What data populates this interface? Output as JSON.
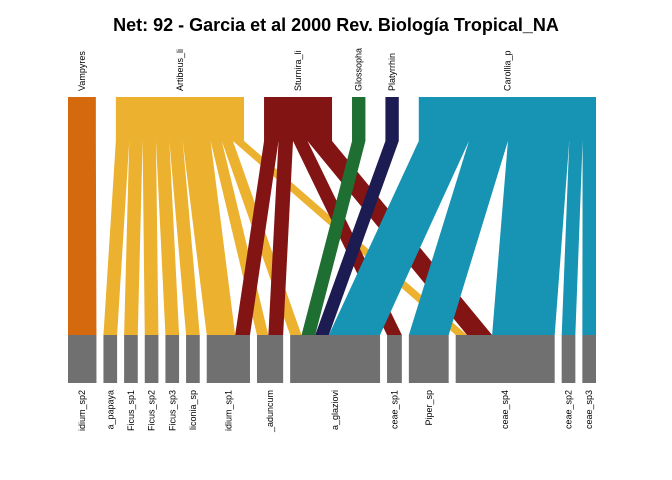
{
  "chart_data": {
    "type": "bipartite",
    "title": "Net: 92 - Garcia et al 2000 Rev. Biología Tropical_NA",
    "higher_level": [
      {
        "label": "Vampyres",
        "color": "#d4690e"
      },
      {
        "label": "Artibeus_li",
        "color": "#ebb12f"
      },
      {
        "label": "Sturnira_li",
        "color": "#821414"
      },
      {
        "label": "Glossopha",
        "color": "#1f6e32"
      },
      {
        "label": "Platyrrhin",
        "color": "#1c1c52"
      },
      {
        "label": "Carollia_p",
        "color": "#1794b3"
      }
    ],
    "lower_level": [
      {
        "label": "idium_sp2",
        "color": "#707070"
      },
      {
        "label": "a_papaya",
        "color": "#707070"
      },
      {
        "label": "Ficus_sp1",
        "color": "#707070"
      },
      {
        "label": "Ficus_sp2",
        "color": "#707070"
      },
      {
        "label": "Ficus_sp3",
        "color": "#707070"
      },
      {
        "label": "liconia_sp",
        "color": "#707070"
      },
      {
        "label": "idium_sp1",
        "color": "#707070"
      },
      {
        "label": "_aduncum",
        "color": "#707070"
      },
      {
        "label": "a_glaziovi",
        "color": "#707070"
      },
      {
        "label": "ceae_sp1",
        "color": "#707070"
      },
      {
        "label": "Piper_sp",
        "color": "#707070"
      },
      {
        "label": "ceae_sp4",
        "color": "#707070"
      },
      {
        "label": "ceae_sp2",
        "color": "#707070"
      },
      {
        "label": "ceae_sp3",
        "color": "#707070"
      }
    ],
    "interactions": [
      {
        "from": "Vampyres",
        "to": "idium_sp2",
        "value": 25
      },
      {
        "from": "Artibeus_li",
        "to": "a_papaya",
        "value": 12
      },
      {
        "from": "Artibeus_li",
        "to": "Ficus_sp1",
        "value": 12
      },
      {
        "from": "Artibeus_li",
        "to": "Ficus_sp2",
        "value": 12
      },
      {
        "from": "Artibeus_li",
        "to": "Ficus_sp3",
        "value": 12
      },
      {
        "from": "Artibeus_li",
        "to": "liconia_sp",
        "value": 12
      },
      {
        "from": "Artibeus_li",
        "to": "idium_sp1",
        "value": 25
      },
      {
        "from": "Artibeus_li",
        "to": "_aduncum",
        "value": 10
      },
      {
        "from": "Artibeus_li",
        "to": "a_glaziovi",
        "value": 10
      },
      {
        "from": "Artibeus_li",
        "to": "ceae_sp4",
        "value": 10
      },
      {
        "from": "Sturnira_li",
        "to": "idium_sp1",
        "value": 13
      },
      {
        "from": "Sturnira_li",
        "to": "_aduncum",
        "value": 13
      },
      {
        "from": "Sturnira_li",
        "to": "ceae_sp1",
        "value": 13
      },
      {
        "from": "Sturnira_li",
        "to": "ceae_sp4",
        "value": 22
      },
      {
        "from": "Glossopha",
        "to": "a_glaziovi",
        "value": 12
      },
      {
        "from": "Platyrrhin",
        "to": "a_glaziovi",
        "value": 12
      },
      {
        "from": "Carollia_p",
        "to": "a_glaziovi",
        "value": 45
      },
      {
        "from": "Carollia_p",
        "to": "Piper_sp",
        "value": 35
      },
      {
        "from": "Carollia_p",
        "to": "ceae_sp4",
        "value": 55
      },
      {
        "from": "Carollia_p",
        "to": "ceae_sp2",
        "value": 12
      },
      {
        "from": "Carollia_p",
        "to": "ceae_sp3",
        "value": 12
      }
    ]
  }
}
